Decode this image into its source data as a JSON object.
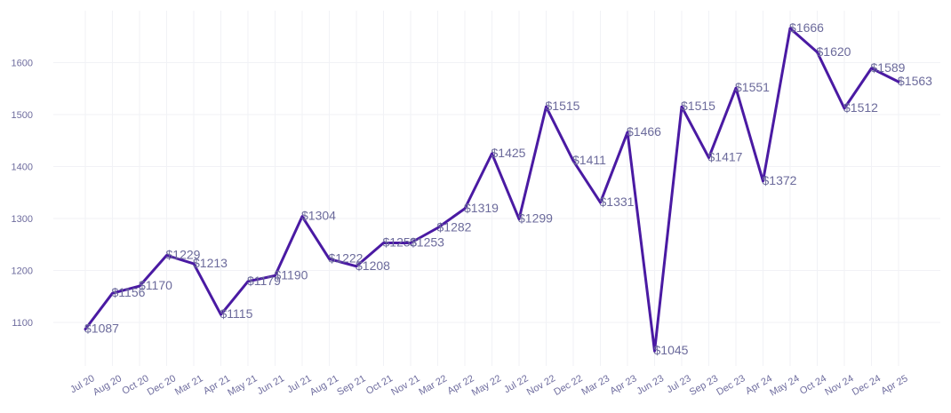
{
  "chart_data": {
    "type": "line",
    "title": "",
    "xlabel": "",
    "ylabel": "",
    "value_prefix": "$",
    "ylim": [
      1030,
      1700
    ],
    "yticks": [
      1100,
      1200,
      1300,
      1400,
      1500,
      1600
    ],
    "grid": true,
    "legend": "none",
    "line_color": "#4a1aa3",
    "text_color": "#6b6a9b",
    "categories": [
      "Jul 20",
      "Aug 20",
      "Oct 20",
      "Dec 20",
      "Mar 21",
      "Apr 21",
      "May 21",
      "Jun 21",
      "Jul 21",
      "Aug 21",
      "Sep 21",
      "Oct 21",
      "Nov 21",
      "Mar 22",
      "Apr 22",
      "May 22",
      "Jul 22",
      "Nov 22",
      "Dec 22",
      "Mar 23",
      "Apr 23",
      "Jun 23",
      "Jul 23",
      "Sep 23",
      "Dec 23",
      "Apr 24",
      "May 24",
      "Oct 24",
      "Nov 24",
      "Dec 24",
      "Apr 25"
    ],
    "values": [
      1087,
      1156,
      1170,
      1229,
      1213,
      1115,
      1179,
      1190,
      1304,
      1222,
      1208,
      1253,
      1253,
      1282,
      1319,
      1425,
      1299,
      1515,
      1411,
      1331,
      1466,
      1045,
      1515,
      1417,
      1551,
      1372,
      1666,
      1620,
      1512,
      1589,
      1563
    ]
  }
}
